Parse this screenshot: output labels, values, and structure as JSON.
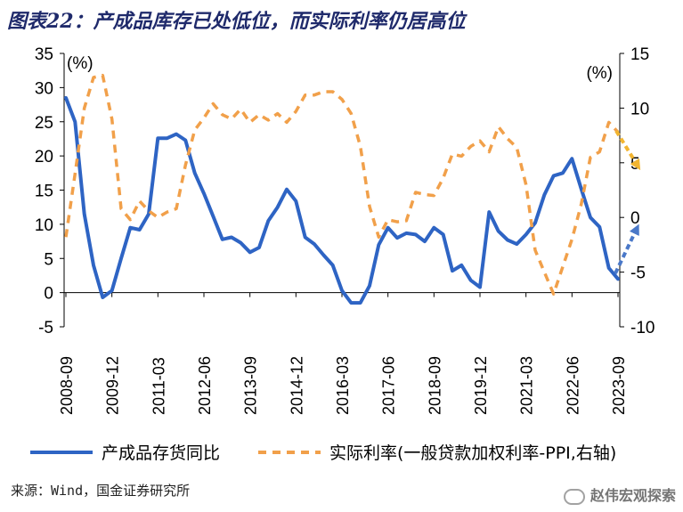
{
  "title": "图表22：产成品库存已处低位，而实际利率仍居高位",
  "source": "来源：Wind，国金证券研究所",
  "watermark": "赵伟宏观探索",
  "colors": {
    "series1": "#2e64c4",
    "series2": "#f1a04a",
    "arrow_down": "#f2b531",
    "arrow_up": "#4a78c8",
    "axis": "#000000"
  },
  "chart_data": {
    "type": "line",
    "x_tick_labels": [
      "2008-09",
      "2009-12",
      "2011-03",
      "2012-06",
      "2013-09",
      "2014-12",
      "2016-03",
      "2017-06",
      "2018-09",
      "2019-12",
      "2021-03",
      "2022-06",
      "2023-09"
    ],
    "left_axis": {
      "unit": "(%)",
      "ylim": [
        -5,
        35
      ],
      "ticks": [
        -5,
        0,
        5,
        10,
        15,
        20,
        25,
        30,
        35
      ]
    },
    "right_axis": {
      "unit": "(%)",
      "ylim": [
        -10,
        15
      ],
      "ticks": [
        -10,
        -5,
        0,
        5,
        10,
        15
      ]
    },
    "series": [
      {
        "name": "产成品存货同比",
        "axis": "left",
        "style": "solid",
        "points": [
          [
            "2008-09",
            28.5
          ],
          [
            "2008-12",
            25
          ],
          [
            "2009-03",
            11.5
          ],
          [
            "2009-06",
            4
          ],
          [
            "2009-09",
            -0.7
          ],
          [
            "2009-12",
            0.3
          ],
          [
            "2010-03",
            5
          ],
          [
            "2010-06",
            9.5
          ],
          [
            "2010-09",
            9.2
          ],
          [
            "2010-12",
            11.5
          ],
          [
            "2011-03",
            22.6
          ],
          [
            "2011-06",
            22.6
          ],
          [
            "2011-09",
            23.2
          ],
          [
            "2011-12",
            22.3
          ],
          [
            "2012-03",
            17.5
          ],
          [
            "2012-06",
            14.5
          ],
          [
            "2012-09",
            11.2
          ],
          [
            "2012-12",
            7.8
          ],
          [
            "2013-03",
            8.1
          ],
          [
            "2013-06",
            7.3
          ],
          [
            "2013-09",
            5.9
          ],
          [
            "2013-12",
            6.6
          ],
          [
            "2014-03",
            10.5
          ],
          [
            "2014-06",
            12.5
          ],
          [
            "2014-09",
            15.1
          ],
          [
            "2014-12",
            13.4
          ],
          [
            "2015-03",
            8.1
          ],
          [
            "2015-06",
            7.1
          ],
          [
            "2015-09",
            5.5
          ],
          [
            "2015-12",
            4
          ],
          [
            "2016-03",
            0.3
          ],
          [
            "2016-06",
            -1.5
          ],
          [
            "2016-09",
            -1.5
          ],
          [
            "2016-12",
            1
          ],
          [
            "2017-03",
            7
          ],
          [
            "2017-06",
            9.5
          ],
          [
            "2017-09",
            8
          ],
          [
            "2017-12",
            8.7
          ],
          [
            "2018-03",
            8.5
          ],
          [
            "2018-06",
            7.5
          ],
          [
            "2018-09",
            9.5
          ],
          [
            "2018-12",
            8.5
          ],
          [
            "2019-03",
            3.2
          ],
          [
            "2019-06",
            4
          ],
          [
            "2019-09",
            1.8
          ],
          [
            "2019-12",
            0.8
          ],
          [
            "2020-03",
            11.8
          ],
          [
            "2020-06",
            9
          ],
          [
            "2020-09",
            7.7
          ],
          [
            "2020-12",
            7.1
          ],
          [
            "2021-03",
            8.5
          ],
          [
            "2021-06",
            10.2
          ],
          [
            "2021-09",
            14.3
          ],
          [
            "2021-12",
            17.1
          ],
          [
            "2022-03",
            17.5
          ],
          [
            "2022-06",
            19.6
          ],
          [
            "2022-09",
            15.2
          ],
          [
            "2022-12",
            11
          ],
          [
            "2023-03",
            9.6
          ],
          [
            "2023-06",
            3.6
          ],
          [
            "2023-09",
            2
          ]
        ]
      },
      {
        "name": "实际利率(一般贷款加权利率-PPI,右轴)",
        "axis": "right",
        "style": "dashed",
        "points": [
          [
            "2008-09",
            -1.8
          ],
          [
            "2008-12",
            4
          ],
          [
            "2009-03",
            10
          ],
          [
            "2009-06",
            12.8
          ],
          [
            "2009-09",
            13
          ],
          [
            "2009-12",
            9
          ],
          [
            "2010-03",
            0.8
          ],
          [
            "2010-06",
            -0.2
          ],
          [
            "2010-09",
            1.5
          ],
          [
            "2010-12",
            0.6
          ],
          [
            "2011-03",
            0
          ],
          [
            "2011-06",
            0.5
          ],
          [
            "2011-09",
            0.8
          ],
          [
            "2011-12",
            4.8
          ],
          [
            "2012-03",
            8
          ],
          [
            "2012-06",
            9.1
          ],
          [
            "2012-09",
            10.4
          ],
          [
            "2012-12",
            9.4
          ],
          [
            "2013-03",
            9
          ],
          [
            "2013-06",
            9.9
          ],
          [
            "2013-09",
            8.7
          ],
          [
            "2013-12",
            9.4
          ],
          [
            "2014-03",
            8.9
          ],
          [
            "2014-06",
            9.5
          ],
          [
            "2014-09",
            8.7
          ],
          [
            "2014-12",
            9.7
          ],
          [
            "2015-03",
            11.2
          ],
          [
            "2015-06",
            11.2
          ],
          [
            "2015-09",
            11.5
          ],
          [
            "2015-12",
            11.5
          ],
          [
            "2016-03",
            10.8
          ],
          [
            "2016-06",
            9.5
          ],
          [
            "2016-09",
            6.5
          ],
          [
            "2016-12",
            1
          ],
          [
            "2017-03",
            -1.8
          ],
          [
            "2017-06",
            -0.2
          ],
          [
            "2017-09",
            -0.4
          ],
          [
            "2017-12",
            -0.3
          ],
          [
            "2018-03",
            2.3
          ],
          [
            "2018-06",
            2.1
          ],
          [
            "2018-09",
            2
          ],
          [
            "2018-12",
            3.6
          ],
          [
            "2019-03",
            5.8
          ],
          [
            "2019-06",
            5.6
          ],
          [
            "2019-09",
            6.5
          ],
          [
            "2019-12",
            7
          ],
          [
            "2020-03",
            6
          ],
          [
            "2020-06",
            8.3
          ],
          [
            "2020-09",
            7.2
          ],
          [
            "2020-12",
            6.4
          ],
          [
            "2021-03",
            3
          ],
          [
            "2021-06",
            -3
          ],
          [
            "2021-09",
            -5
          ],
          [
            "2021-12",
            -7
          ],
          [
            "2022-03",
            -4.5
          ],
          [
            "2022-06",
            -2
          ],
          [
            "2022-09",
            1.2
          ],
          [
            "2022-12",
            5.5
          ],
          [
            "2023-03",
            6
          ],
          [
            "2023-06",
            8.7
          ],
          [
            "2023-09",
            7.8
          ]
        ]
      }
    ],
    "legend": {
      "placement": "bottom"
    }
  }
}
